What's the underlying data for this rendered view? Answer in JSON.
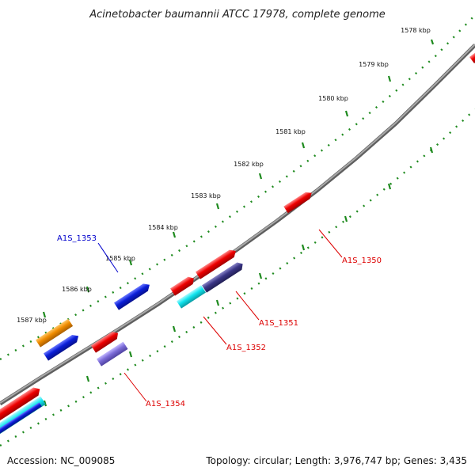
{
  "title": "Acinetobacter baumannii ATCC 17978, complete genome",
  "footer": {
    "accession": "Accession: NC_009085",
    "summary": "Topology: circular; Length: 3,976,747 bp; Genes: 3,435"
  },
  "scale_labels": [
    "1578 kbp",
    "1579 kbp",
    "1580 kbp",
    "1581 kbp",
    "1582 kbp",
    "1583 kbp",
    "1584 kbp",
    "1585 kbp",
    "1586 kbp",
    "1587 kbp"
  ],
  "gene_labels": {
    "a1s_1350": "A1S_1350",
    "a1s_1351": "A1S_1351",
    "a1s_1352": "A1S_1352",
    "a1s_1353": "A1S_1353",
    "a1s_1354": "A1S_1354"
  },
  "colors": {
    "backbone": "#808080",
    "tick": "#1e8a1e",
    "red": "#ee0000",
    "blue": "#0a1ed8",
    "orange": "#f08c00",
    "cyan": "#10e4ee",
    "navy": "#3a3585",
    "lavender": "#7c6cd8",
    "label_red": "#dd0000",
    "label_blue": "#0000cc"
  }
}
